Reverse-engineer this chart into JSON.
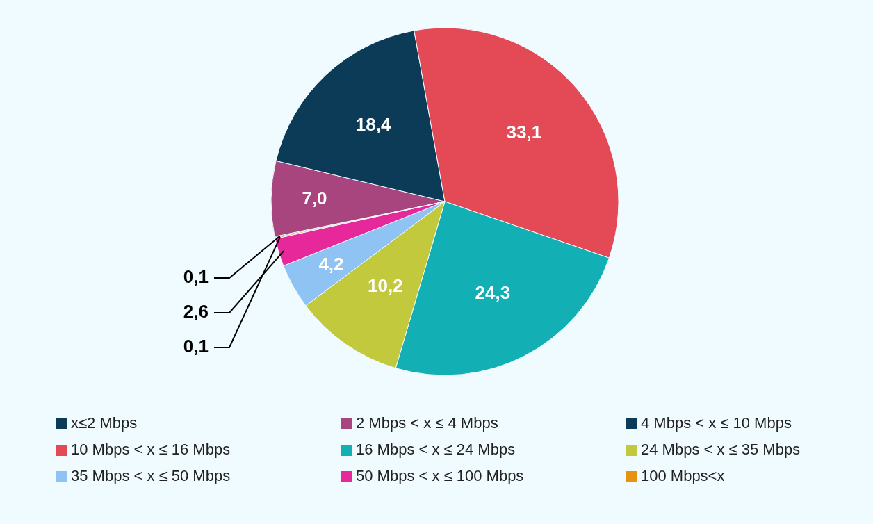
{
  "chart_data": {
    "type": "pie",
    "categories": [
      "x≤2 Mbps",
      "2 Mbps < x ≤ 4 Mbps",
      "4 Mbps < x ≤ 10 Mbps",
      "10 Mbps < x ≤ 16 Mbps",
      "16 Mbps < x ≤ 24 Mbps",
      "24 Mbps < x ≤ 35 Mbps",
      "35 Mbps < x ≤ 50 Mbps",
      "50 Mbps < x ≤ 100 Mbps",
      "100 Mbps<x"
    ],
    "values": [
      0.1,
      7.0,
      18.4,
      33.1,
      24.3,
      10.2,
      4.2,
      2.6,
      0.1
    ],
    "value_labels": [
      "0,1",
      "7,0",
      "18,4",
      "33,1",
      "24,3",
      "10,2",
      "4,2",
      "2,6",
      "0,1"
    ],
    "colors": [
      "#0b3b57",
      "#a8457f",
      "#0b3b57",
      "#e44a55",
      "#12b0b4",
      "#c2c93d",
      "#8ec3f3",
      "#e6289a",
      "#e8930f"
    ],
    "legend": "bottom"
  }
}
